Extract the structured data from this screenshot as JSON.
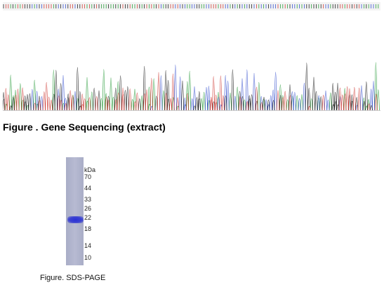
{
  "sequencing_figure": {
    "caption": "Figure . Gene Sequencing (extract)",
    "trace_colors": {
      "A": "#2e9e3f",
      "C": "#3b55cf",
      "G": "#222222",
      "T": "#d0413b"
    }
  },
  "sds_page_figure": {
    "caption": "Figure. SDS-PAGE",
    "unit_label": "kDa",
    "markers": [
      "70",
      "44",
      "33",
      "26",
      "22",
      "18",
      "14",
      "10"
    ],
    "lane_color": "#b0b4cc",
    "band_color": "#3a40d0"
  }
}
